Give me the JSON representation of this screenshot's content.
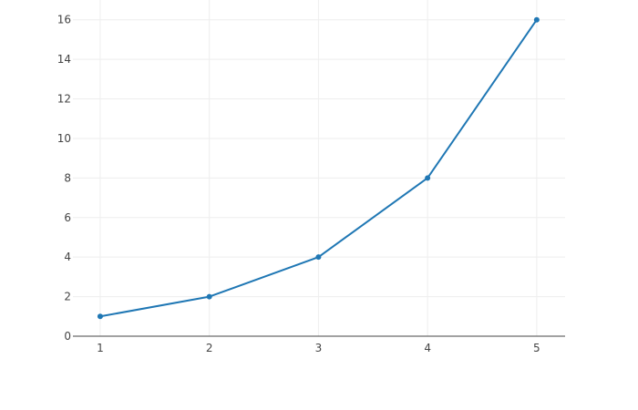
{
  "chart_data": {
    "type": "line",
    "title": "",
    "xlabel": "",
    "ylabel": "",
    "x": [
      1,
      2,
      3,
      4,
      5
    ],
    "series": [
      {
        "values": [
          1,
          2,
          4,
          8,
          16
        ],
        "color": "#1f77b4",
        "mode": "lines+markers"
      }
    ],
    "xlim": [
      0.75,
      5.26
    ],
    "ylim": [
      0,
      17
    ],
    "xticks": [
      1,
      2,
      3,
      4,
      5
    ],
    "yticks": [
      0,
      2,
      4,
      6,
      8,
      10,
      12,
      14,
      16
    ],
    "grid": true,
    "legend": "none",
    "colors": {
      "grid": "#eeeeee",
      "axis": "#444444"
    }
  }
}
